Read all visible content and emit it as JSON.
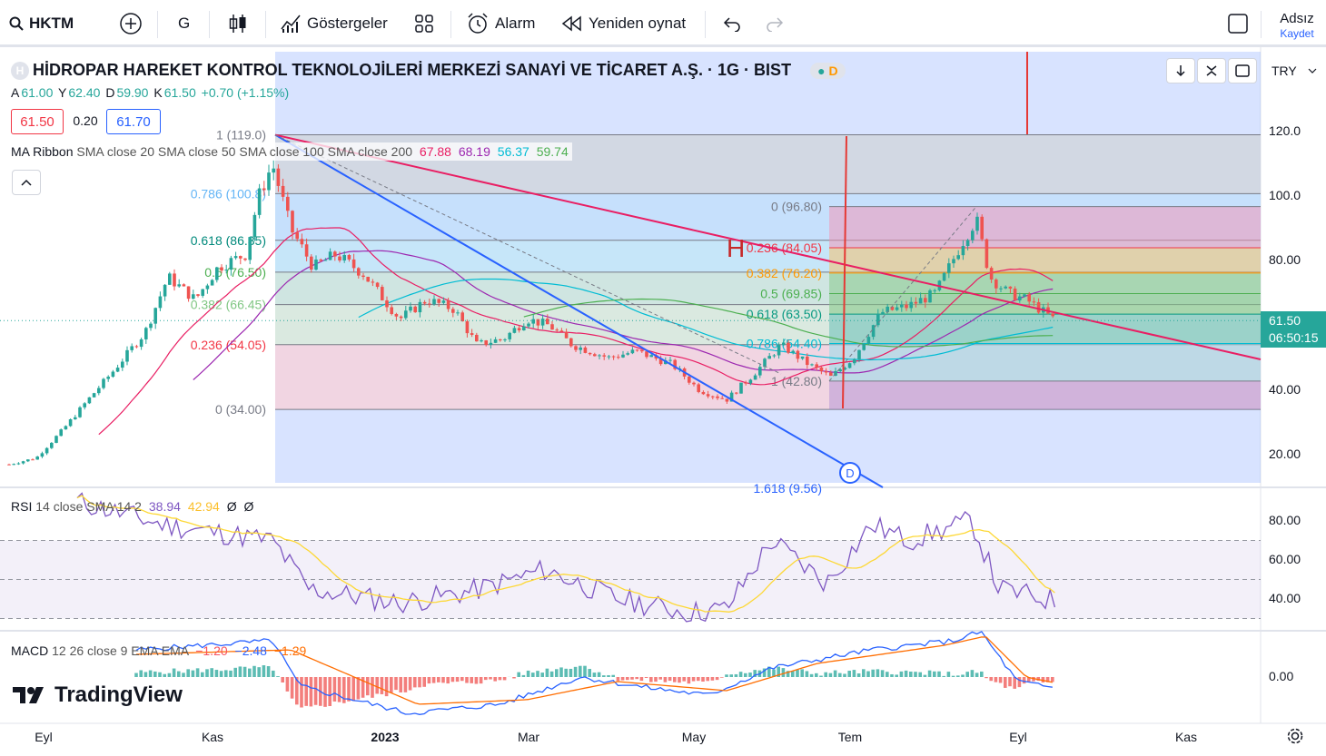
{
  "toolbar": {
    "symbol": "HKTM",
    "interval": "G",
    "indicators_label": "Göstergeler",
    "alarm_label": "Alarm",
    "replay_label": "Yeniden oynat",
    "user_name": "Adsız",
    "save_label": "Kaydet"
  },
  "header": {
    "title": "HİDROPAR HAREKET KONTROL TEKNOLOJİLERİ MERKEZİ SANAYİ VE TİCARET A.Ş. · 1G · BIST",
    "badge": "D",
    "ohlc": {
      "a_label": "A",
      "a": "61.00",
      "y_label": "Y",
      "y": "62.40",
      "d_label": "D",
      "d": "59.90",
      "k_label": "K",
      "k": "61.50",
      "change": "+0.70 (+1.15%)"
    },
    "bid": "61.50",
    "spread": "0.20",
    "ask": "61.70",
    "currency": "TRY"
  },
  "ma_ribbon": {
    "label": "MA Ribbon",
    "params": "SMA close 20 SMA close 50 SMA close 100 SMA close 200",
    "v1": "67.88",
    "v2": "68.19",
    "v3": "56.37",
    "v4": "59.74",
    "c1": "#e91e63",
    "c2": "#9c27b0",
    "c3": "#00bcd4",
    "c4": "#4caf50"
  },
  "rsi": {
    "label": "RSI",
    "params": "14 close SMA 14 2",
    "v1": "38.94",
    "v2": "42.94",
    "v3": "Ø",
    "v4": "Ø"
  },
  "macd": {
    "label": "MACD",
    "params": "12 26 close 9 EMA EMA",
    "v1": "−1.20",
    "v2": "−2.48",
    "v3": "−1.29"
  },
  "price_axis": {
    "ticks": [
      "120.0",
      "100.0",
      "80.00",
      "60.00",
      "40.00",
      "20.00"
    ],
    "last_price": "61.50",
    "countdown": "06:50:15"
  },
  "rsi_axis": {
    "ticks": [
      "80.00",
      "60.00",
      "40.00"
    ]
  },
  "macd_axis": {
    "ticks": [
      "0.00"
    ]
  },
  "time_axis": {
    "ticks": [
      "Eyl",
      "Kas",
      "2023",
      "Mar",
      "May",
      "Tem",
      "Eyl",
      "Kas"
    ]
  },
  "fib_left": {
    "levels": [
      {
        "label": "1 (119.0)"
      },
      {
        "label": "0.786 (100.8)"
      },
      {
        "label": "0.618 (86.35)"
      },
      {
        "label": "0.5 (76.50)"
      },
      {
        "label": "0.382 (66.45)"
      },
      {
        "label": "0.236 (54.05)"
      },
      {
        "label": "0 (34.00)"
      }
    ]
  },
  "fib_right": {
    "levels": [
      {
        "label": "0 (96.80)"
      },
      {
        "label": "0.236 (84.05)"
      },
      {
        "label": "0.382 (76.20)"
      },
      {
        "label": "0.5 (69.85)"
      },
      {
        "label": "0.618 (63.50)"
      },
      {
        "label": "0.786 (54.40)"
      },
      {
        "label": "1 (42.80)"
      },
      {
        "label": "1.618 (9.56)"
      }
    ]
  },
  "annotations": {
    "h_marker": "H",
    "d_marker": "D"
  },
  "branding": {
    "logo_text": "TradingView"
  },
  "chart_data": {
    "type": "line",
    "title": "HİDROPAR HAREKET KONTROL TEKNOLOJİLERİ MERKEZİ SANAYİ VE TİCARET A.Ş. · 1G · BIST",
    "x": [
      "2022-08",
      "2022-09",
      "2022-10",
      "2022-11",
      "2022-12",
      "2023-01",
      "2023-02",
      "2023-03",
      "2023-04",
      "2023-05",
      "2023-06",
      "2023-07",
      "2023-08",
      "2023-09"
    ],
    "series": [
      {
        "values": [
          17,
          24,
          55,
          110,
          86,
          72,
          58,
          55,
          53,
          37,
          45,
          58,
          80,
          61.5
        ]
      },
      {
        "name": "RSI",
        "values": [
          85,
          74,
          78,
          70,
          50,
          47,
          44,
          55,
          42,
          33,
          68,
          47,
          76,
          39
        ]
      },
      {
        "name": "MACD",
        "values": [
          0,
          5,
          8,
          3,
          -7,
          -8,
          -4,
          -2,
          -3,
          -3,
          2,
          7,
          10,
          -2.48
        ]
      }
    ],
    "ylim": [
      0,
      130
    ],
    "y_ticks": [
      20,
      40,
      60,
      80,
      100,
      120
    ],
    "x_ticks": [
      "Eyl",
      "Kas",
      "2023",
      "Mar",
      "May",
      "Tem",
      "Eyl",
      "Kas"
    ],
    "last": 61.5,
    "grid": false
  }
}
